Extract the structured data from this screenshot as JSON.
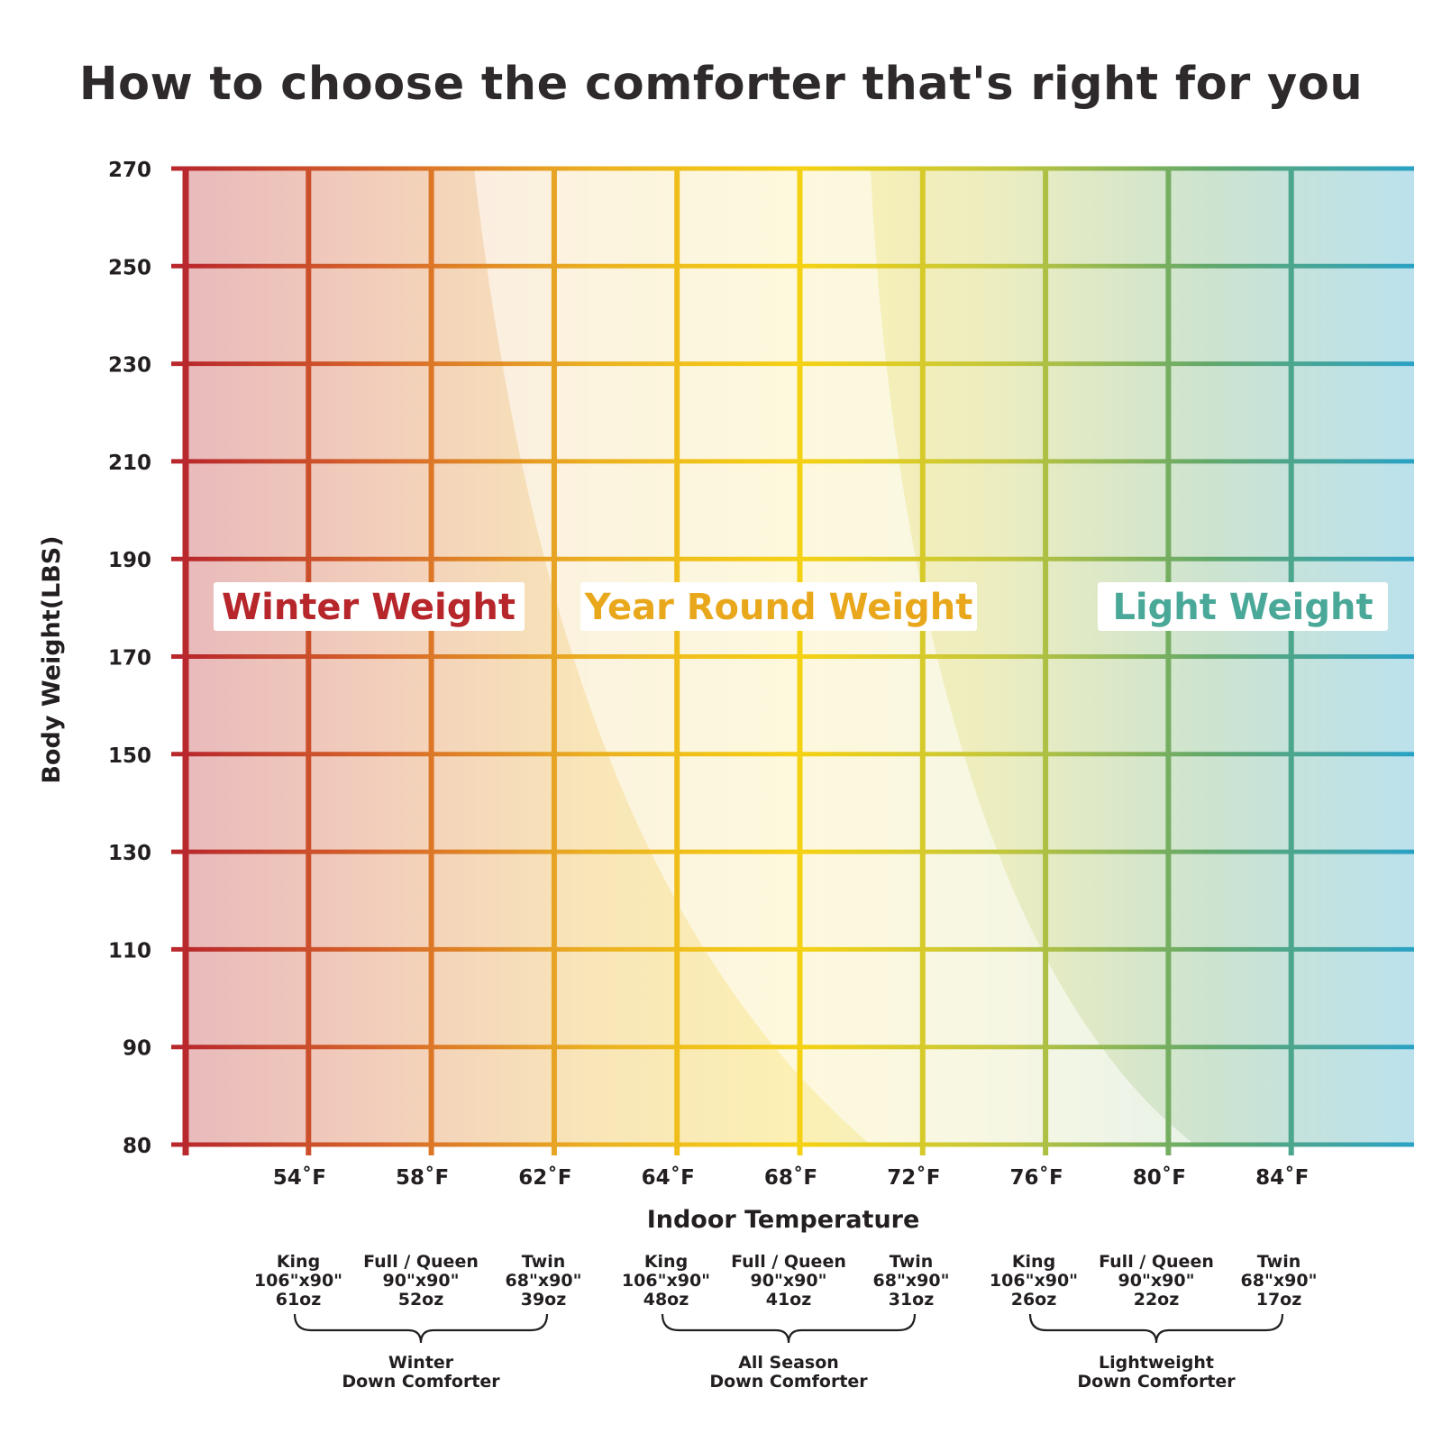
{
  "title": "How to choose the comforter that's right for you",
  "chart_data": {
    "type": "heatmap",
    "title": "How to choose the comforter that's right for you",
    "xlabel": "Indoor Temperature",
    "ylabel": "Body Weight(LBS)",
    "x_ticks": [
      "54˚F",
      "58˚F",
      "62˚F",
      "64˚F",
      "68˚F",
      "72˚F",
      "76˚F",
      "80˚F",
      "84˚F"
    ],
    "y_ticks": [
      80,
      90,
      110,
      130,
      150,
      170,
      190,
      210,
      230,
      250,
      270
    ],
    "ylim": [
      80,
      270
    ],
    "zones": [
      {
        "name": "Winter Weight",
        "color": "#b6262b"
      },
      {
        "name": "Year Round Weight",
        "color": "#e9a81c"
      },
      {
        "name": "Light Weight",
        "color": "#4aa899"
      }
    ],
    "gradient_colors": [
      "#b9282c",
      "#d8692a",
      "#ebb121",
      "#f5d113",
      "#c1c63b",
      "#62a86a",
      "#2aa2c5"
    ],
    "comforter_groups": [
      {
        "name": "Winter\nDown Comforter",
        "sizes": [
          {
            "size": "King",
            "dimensions": "106\"x90\"",
            "weight": "61oz"
          },
          {
            "size": "Full / Queen",
            "dimensions": "90\"x90\"",
            "weight": "52oz"
          },
          {
            "size": "Twin",
            "dimensions": "68\"x90\"",
            "weight": "39oz"
          }
        ]
      },
      {
        "name": "All Season\nDown Comforter",
        "sizes": [
          {
            "size": "King",
            "dimensions": "106\"x90\"",
            "weight": "48oz"
          },
          {
            "size": "Full / Queen",
            "dimensions": "90\"x90\"",
            "weight": "41oz"
          },
          {
            "size": "Twin",
            "dimensions": "68\"x90\"",
            "weight": "31oz"
          }
        ]
      },
      {
        "name": "Lightweight\nDown Comforter",
        "sizes": [
          {
            "size": "King",
            "dimensions": "106\"x90\"",
            "weight": "26oz"
          },
          {
            "size": "Full / Queen",
            "dimensions": "90\"x90\"",
            "weight": "22oz"
          },
          {
            "size": "Twin",
            "dimensions": "68\"x90\"",
            "weight": "17oz"
          }
        ]
      }
    ]
  }
}
